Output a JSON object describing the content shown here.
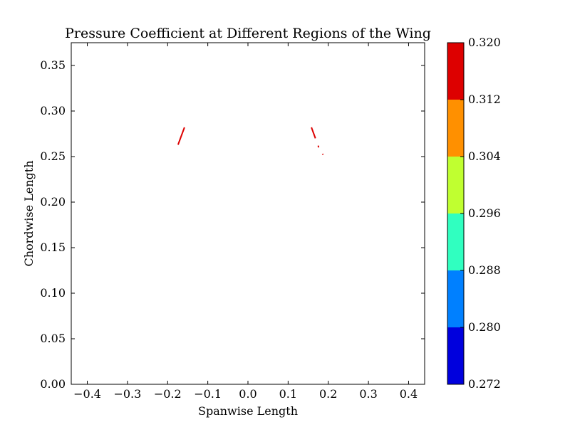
{
  "chart_data": {
    "type": "contourf",
    "title": "Pressure Coefficient at Different Regions of the Wing",
    "xlabel": "Spanwise Length",
    "ylabel": "Chordwise Length",
    "xlim": [
      -0.44,
      0.44
    ],
    "ylim": [
      0.0,
      0.375
    ],
    "xticks": [
      -0.4,
      -0.3,
      -0.2,
      -0.1,
      0.0,
      0.1,
      0.2,
      0.3,
      0.4
    ],
    "xtick_labels": [
      "−0.4",
      "−0.3",
      "−0.2",
      "−0.1",
      "0.0",
      "0.1",
      "0.2",
      "0.3",
      "0.4"
    ],
    "yticks": [
      0.0,
      0.05,
      0.1,
      0.15,
      0.2,
      0.25,
      0.3,
      0.35
    ],
    "ytick_labels": [
      "0.00",
      "0.05",
      "0.10",
      "0.15",
      "0.20",
      "0.25",
      "0.30",
      "0.35"
    ],
    "grid": false,
    "colorbar": {
      "levels": [
        0.272,
        0.28,
        0.288,
        0.296,
        0.304,
        0.312,
        0.32
      ],
      "tick_labels": [
        "0.272",
        "0.280",
        "0.288",
        "0.296",
        "0.304",
        "0.312",
        "0.320"
      ],
      "colors": [
        "#0000dd",
        "#0080ff",
        "#30ffc0",
        "#c0ff30",
        "#ff9000",
        "#dd0000"
      ]
    },
    "contour_segments": [
      {
        "points": [
          [
            -0.174,
            0.263
          ],
          [
            -0.158,
            0.282
          ]
        ],
        "color": "#dd0000",
        "width": 2
      },
      {
        "points": [
          [
            0.158,
            0.282
          ],
          [
            0.168,
            0.27
          ]
        ],
        "color": "#dd0000",
        "width": 2
      },
      {
        "points": [
          [
            0.175,
            0.262
          ],
          [
            0.176,
            0.26
          ]
        ],
        "color": "#dd0000",
        "width": 2
      },
      {
        "points": [
          [
            0.186,
            0.253
          ],
          [
            0.187,
            0.252
          ]
        ],
        "color": "#dd0000",
        "width": 2
      }
    ]
  }
}
